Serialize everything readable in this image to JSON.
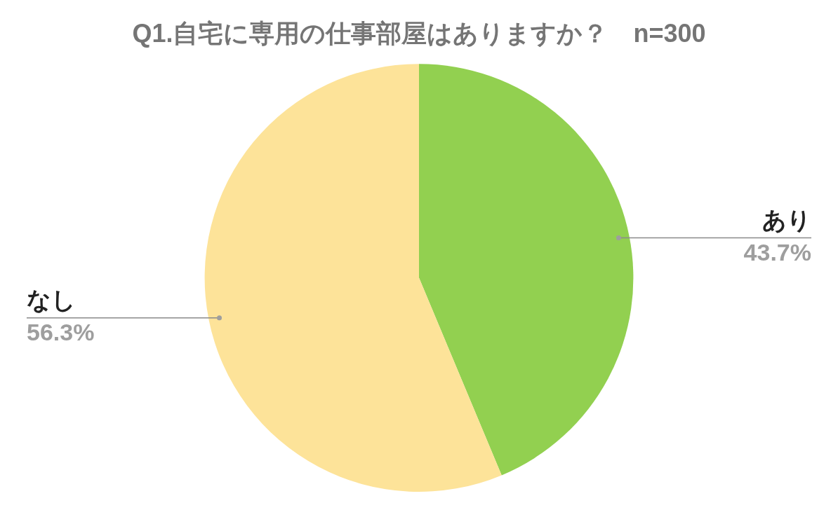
{
  "chart_data": {
    "type": "pie",
    "title": "Q1.自宅に専用の仕事部屋はありますか？　n=300",
    "categories": [
      "あり",
      "なし"
    ],
    "values": [
      43.7,
      56.3
    ],
    "value_labels": [
      "43.7%",
      "56.3%"
    ],
    "colors": [
      "#92d050",
      "#fde399"
    ],
    "legend": false
  }
}
